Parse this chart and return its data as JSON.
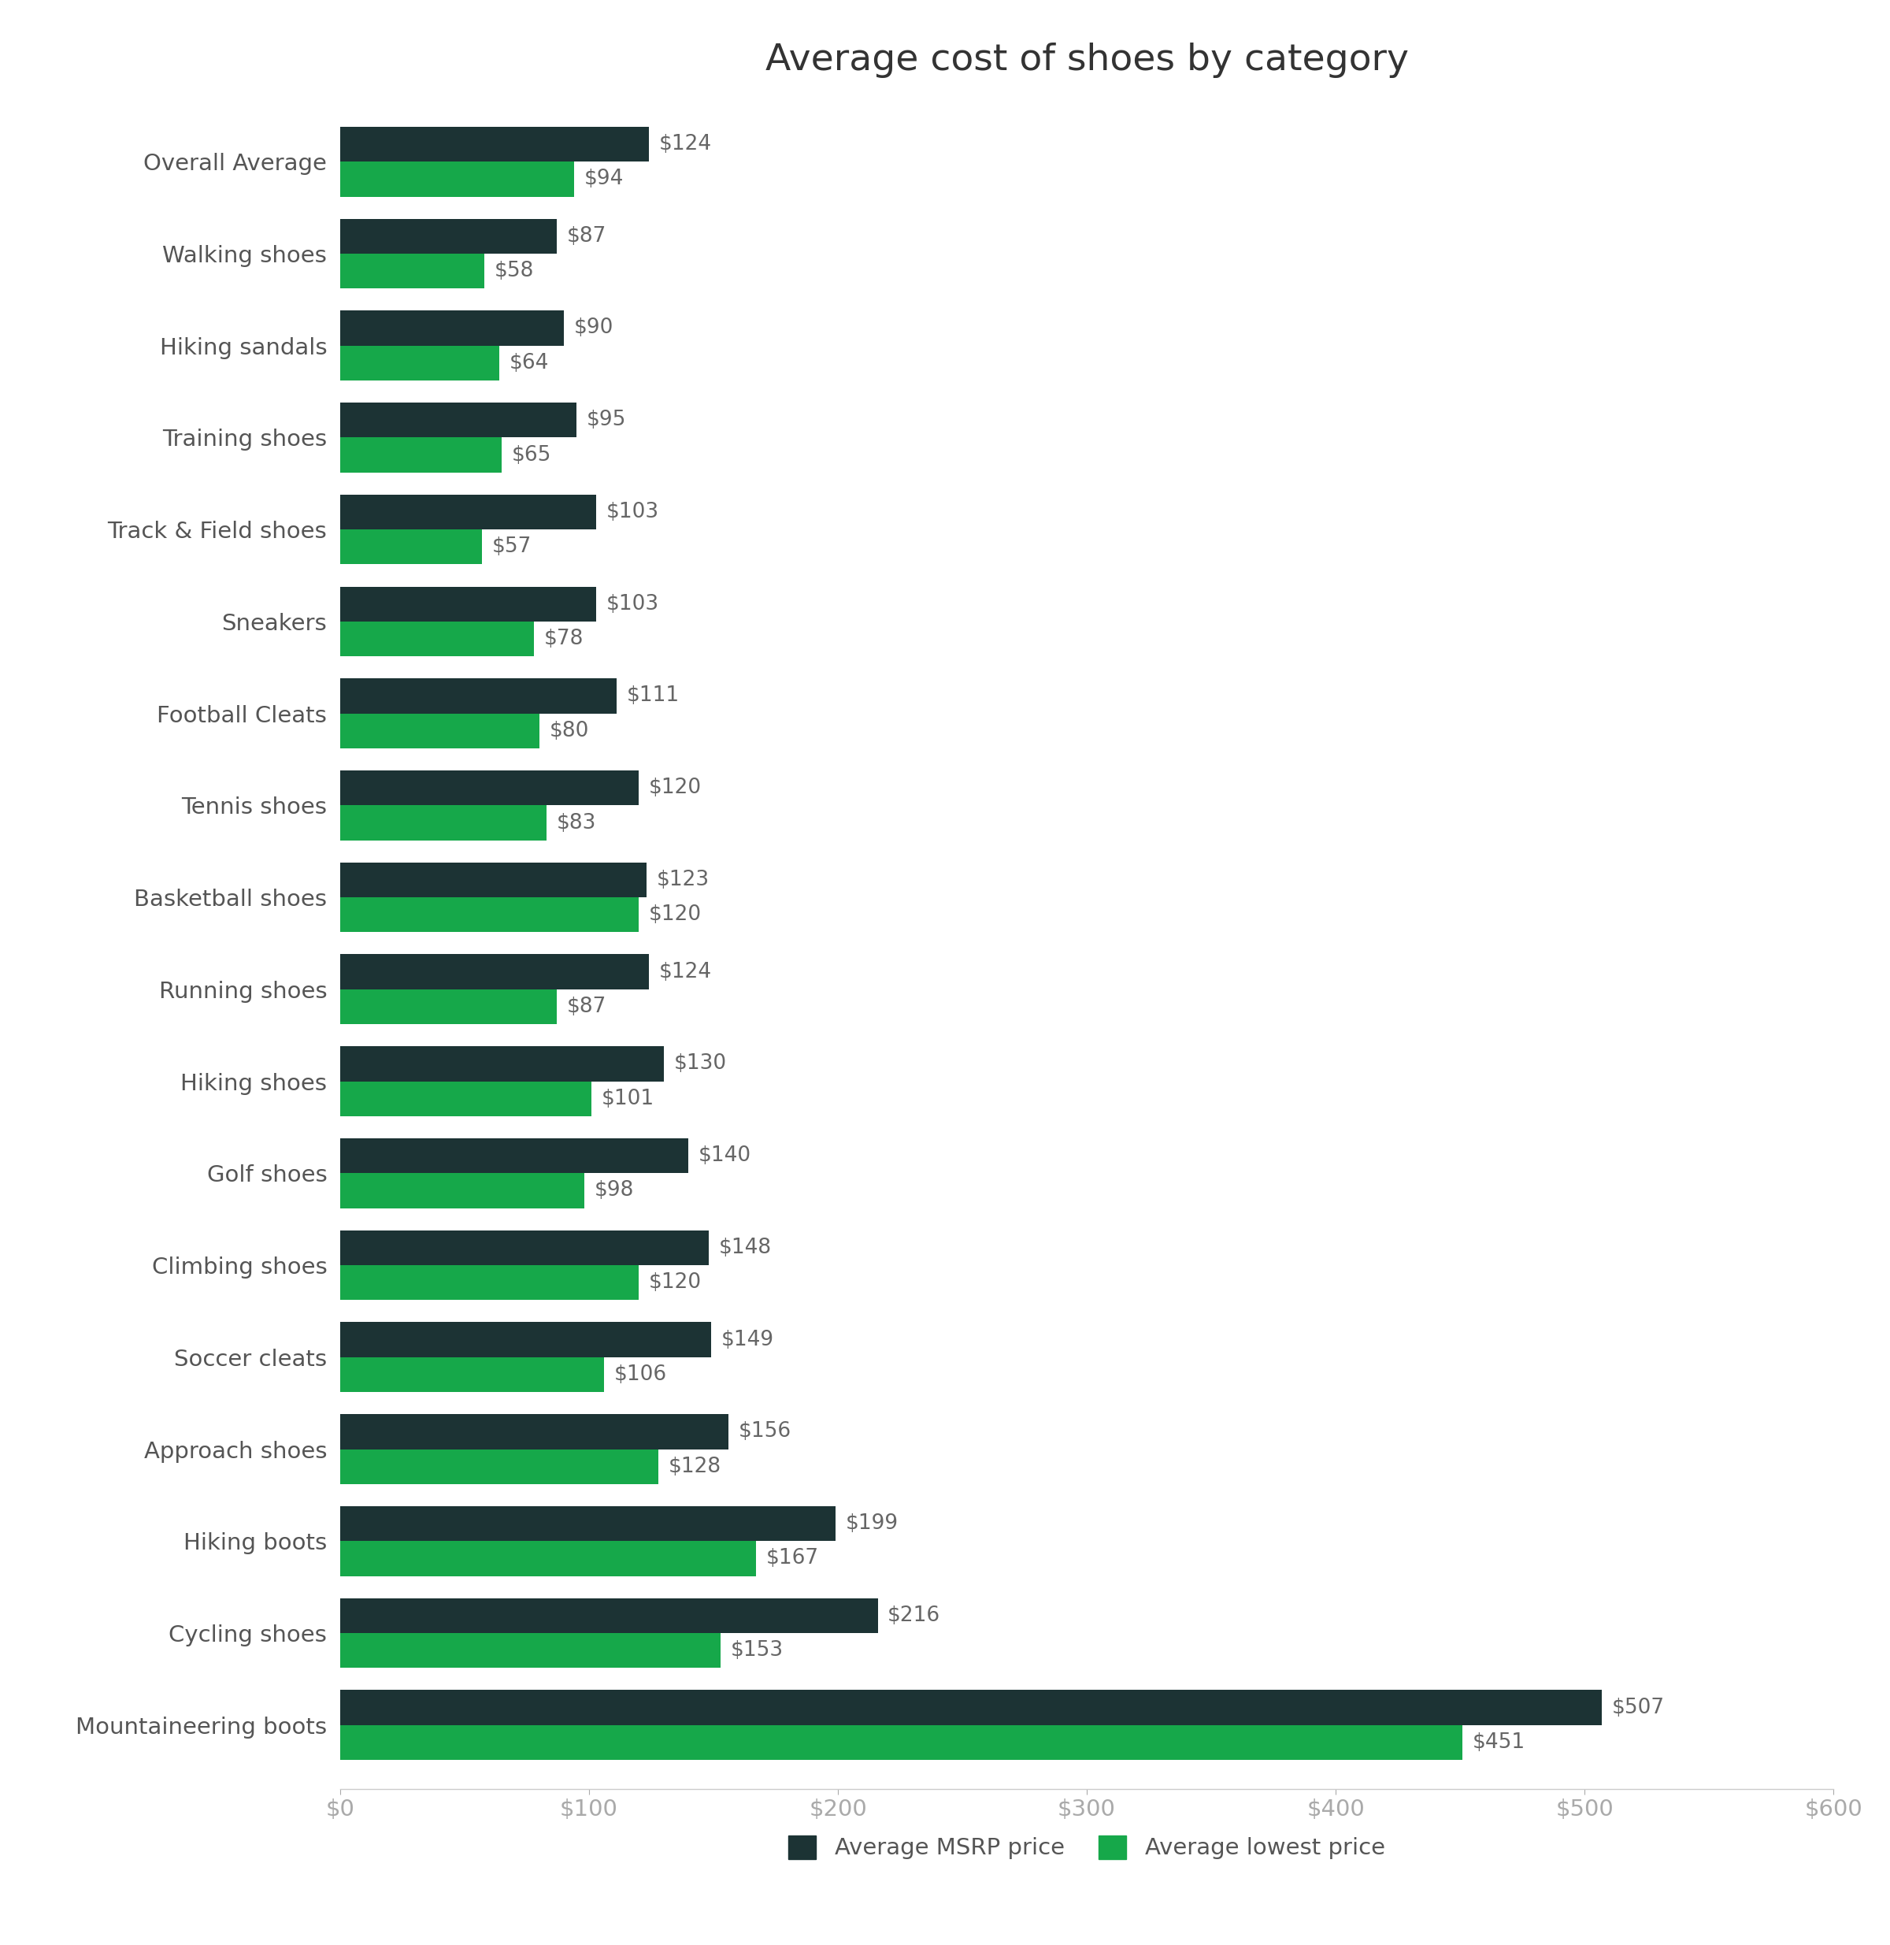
{
  "title": "Average cost of shoes by category",
  "categories": [
    "Overall Average",
    "Walking shoes",
    "Hiking sandals",
    "Training shoes",
    "Track & Field shoes",
    "Sneakers",
    "Football Cleats",
    "Tennis shoes",
    "Basketball shoes",
    "Running shoes",
    "Hiking shoes",
    "Golf shoes",
    "Climbing shoes",
    "Soccer cleats",
    "Approach shoes",
    "Hiking boots",
    "Cycling shoes",
    "Mountaineering boots"
  ],
  "msrp": [
    124,
    87,
    90,
    95,
    103,
    103,
    111,
    120,
    123,
    124,
    130,
    140,
    148,
    149,
    156,
    199,
    216,
    507
  ],
  "lowest": [
    94,
    58,
    64,
    65,
    57,
    78,
    80,
    83,
    120,
    87,
    101,
    98,
    120,
    106,
    128,
    167,
    153,
    451
  ],
  "msrp_color": "#1c3334",
  "lowest_color": "#16a84a",
  "background_color": "#ffffff",
  "title_fontsize": 34,
  "tick_fontsize": 21,
  "annotation_fontsize": 19,
  "legend_fontsize": 21,
  "xlim": [
    0,
    600
  ],
  "xticks": [
    0,
    100,
    200,
    300,
    400,
    500,
    600
  ],
  "xtick_labels": [
    "$0",
    "$100",
    "$200",
    "$300",
    "$400",
    "$500",
    "$600"
  ],
  "bar_height": 0.38,
  "legend_labels": [
    "Average MSRP price",
    "Average lowest price"
  ]
}
